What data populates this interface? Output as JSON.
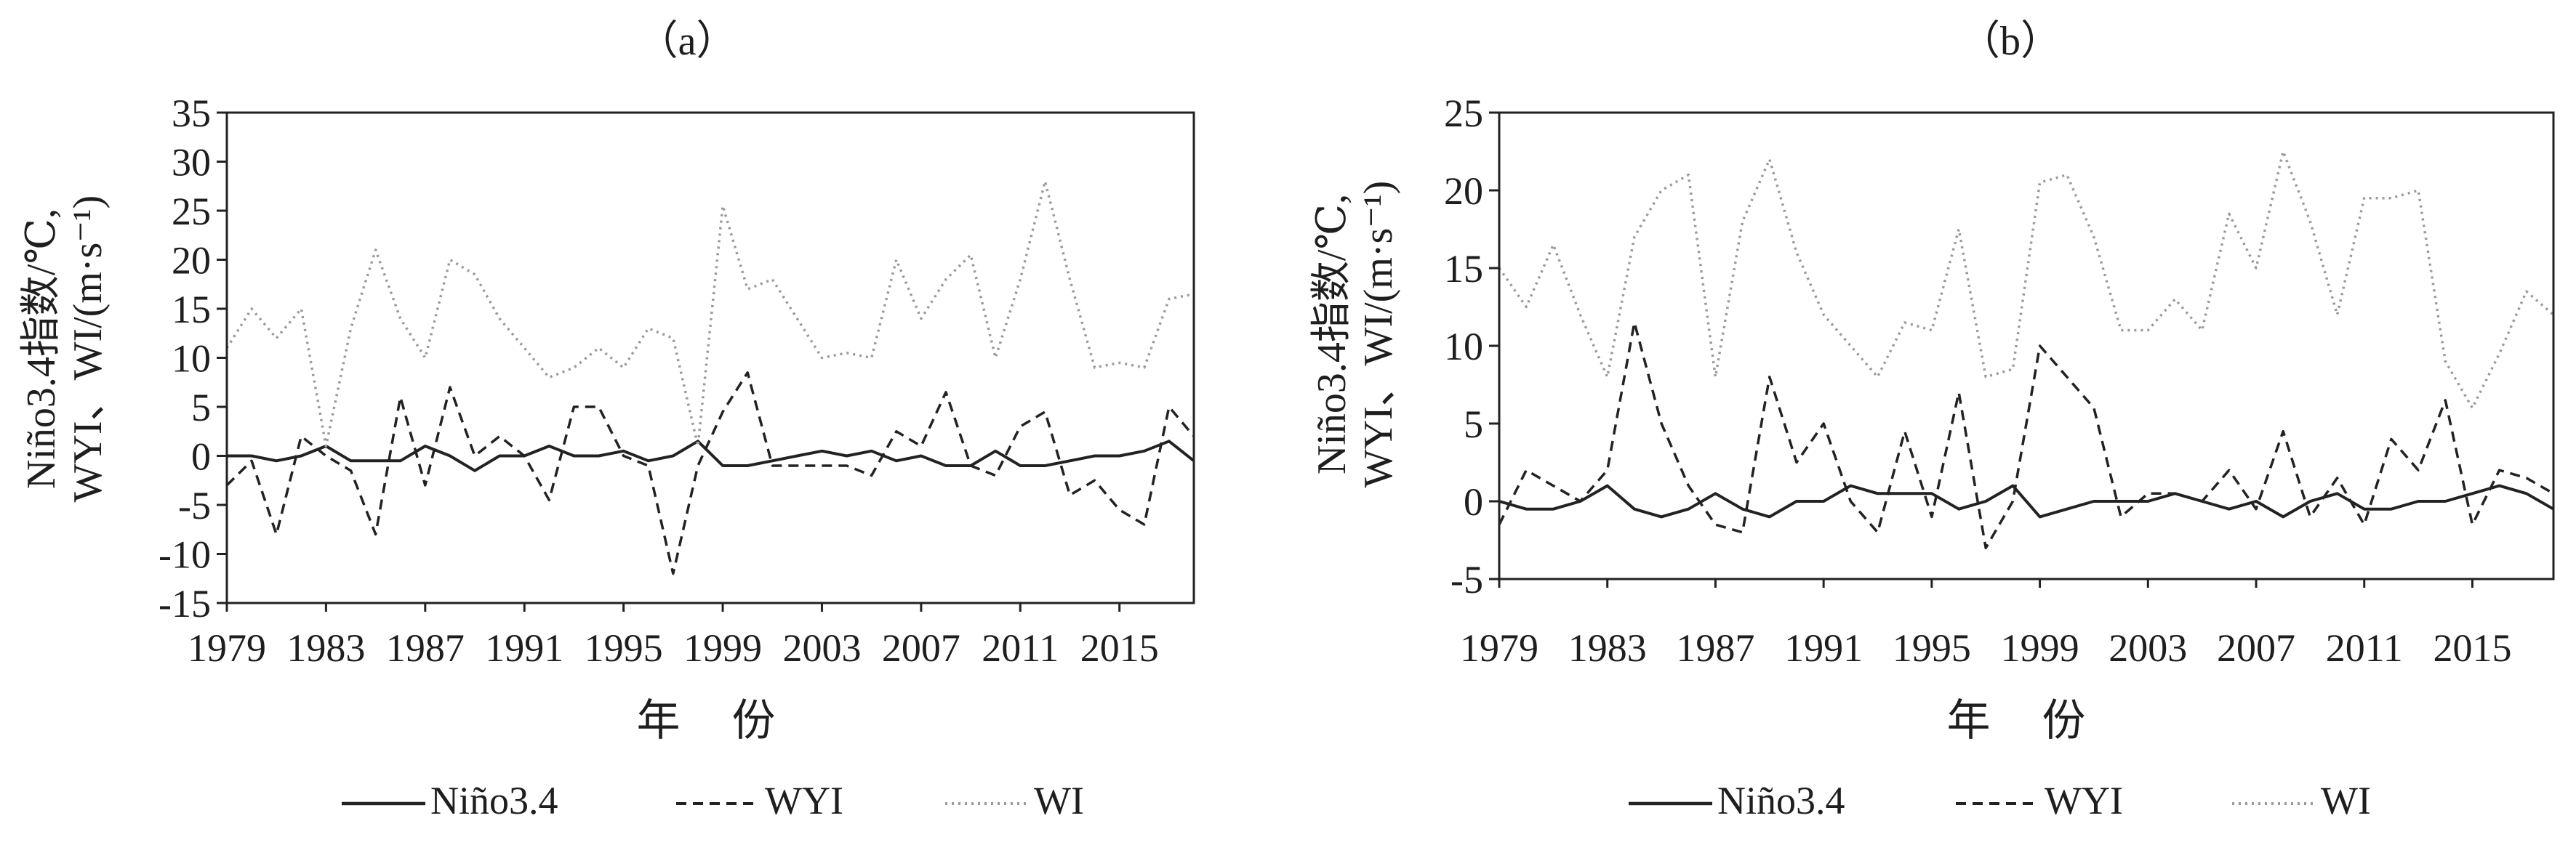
{
  "chart_data": [
    {
      "type": "line",
      "title": "（a）",
      "xlabel": "年 份",
      "ylabel_line1": "Niño3.4指数/℃,",
      "ylabel_line2": "WYI、WI/(m·s⁻¹)",
      "ylim": [
        -15,
        35
      ],
      "yticks": [
        35,
        30,
        25,
        20,
        15,
        10,
        5,
        0,
        -5,
        -10,
        -15
      ],
      "xlim": [
        1979,
        2018
      ],
      "xticks": [
        "1979",
        "1983",
        "1987",
        "1991",
        "1995",
        "1999",
        "2003",
        "2007",
        "2011",
        "2015"
      ],
      "x": [
        1979,
        1980,
        1981,
        1982,
        1983,
        1984,
        1985,
        1986,
        1987,
        1988,
        1989,
        1990,
        1991,
        1992,
        1993,
        1994,
        1995,
        1996,
        1997,
        1998,
        1999,
        2000,
        2001,
        2002,
        2003,
        2004,
        2005,
        2006,
        2007,
        2008,
        2009,
        2010,
        2011,
        2012,
        2013,
        2014,
        2015,
        2016,
        2017,
        2018
      ],
      "series": [
        {
          "name": "Niño3.4",
          "style": "solid",
          "color": "#222222",
          "values": [
            0,
            0,
            -0.5,
            0,
            1,
            -0.5,
            -0.5,
            -0.5,
            1,
            0,
            -1.5,
            0,
            0,
            1,
            0,
            0,
            0.5,
            -0.5,
            0,
            1.5,
            -1,
            -1,
            -0.5,
            0,
            0.5,
            0,
            0.5,
            -0.5,
            0,
            -1,
            -1,
            0.5,
            -1,
            -1,
            -0.5,
            0,
            0,
            0.5,
            1.5,
            -0.5
          ]
        },
        {
          "name": "WYI",
          "style": "dashed",
          "color": "#222222",
          "values": [
            -3,
            -0.5,
            -8,
            2,
            0,
            -1.5,
            -8,
            6,
            -3,
            7,
            0,
            2,
            0,
            -4.5,
            5,
            5,
            0,
            -1,
            -12,
            -1,
            4.5,
            8.5,
            -1,
            -1,
            -1,
            -1,
            -2,
            2.5,
            1,
            6.5,
            -1,
            -2,
            3,
            4.5,
            -4,
            -2.5,
            -5.5,
            -7,
            5,
            2
          ]
        },
        {
          "name": "WI",
          "style": "dotted",
          "color": "#9a9a9a",
          "values": [
            11,
            15,
            12,
            15,
            1,
            13,
            21,
            14,
            10,
            20,
            18.5,
            14,
            11,
            8,
            9,
            11,
            9,
            13,
            12,
            1,
            25.5,
            17,
            18,
            14,
            10,
            10.5,
            10,
            20,
            14,
            18,
            20.5,
            10,
            18,
            28,
            18,
            9,
            9.5,
            9,
            16,
            16.5
          ]
        }
      ],
      "legend_position": "bottom"
    },
    {
      "type": "line",
      "title": "（b）",
      "xlabel": "年 份",
      "ylabel_line1": "Niño3.4指数/℃,",
      "ylabel_line2": "WYI、WI/(m·s⁻¹)",
      "ylim": [
        -5,
        25
      ],
      "yticks": [
        25,
        20,
        15,
        10,
        5,
        0,
        -5
      ],
      "xlim": [
        1979,
        2018
      ],
      "xticks": [
        "1979",
        "1983",
        "1987",
        "1991",
        "1995",
        "1999",
        "2003",
        "2007",
        "2011",
        "2015"
      ],
      "x": [
        1979,
        1980,
        1981,
        1982,
        1983,
        1984,
        1985,
        1986,
        1987,
        1988,
        1989,
        1990,
        1991,
        1992,
        1993,
        1994,
        1995,
        1996,
        1997,
        1998,
        1999,
        2000,
        2001,
        2002,
        2003,
        2004,
        2005,
        2006,
        2007,
        2008,
        2009,
        2010,
        2011,
        2012,
        2013,
        2014,
        2015,
        2016,
        2017,
        2018
      ],
      "series": [
        {
          "name": "Niño3.4",
          "style": "solid",
          "color": "#222222",
          "values": [
            0,
            -0.5,
            -0.5,
            0,
            1,
            -0.5,
            -1,
            -0.5,
            0.5,
            -0.5,
            -1,
            0,
            0,
            1,
            0.5,
            0.5,
            0.5,
            -0.5,
            0,
            1,
            -1,
            -0.5,
            0,
            0,
            0,
            0.5,
            0,
            -0.5,
            0,
            -1,
            0,
            0.5,
            -0.5,
            -0.5,
            0,
            0,
            0.5,
            1,
            0.5,
            -0.5
          ]
        },
        {
          "name": "WYI",
          "style": "dashed",
          "color": "#222222",
          "values": [
            -1.5,
            2,
            1,
            0,
            2,
            11.5,
            5,
            1,
            -1.5,
            -2,
            8,
            2.5,
            5,
            0,
            -2,
            4.5,
            -1,
            7,
            -3,
            0,
            10,
            8,
            6,
            -1,
            0.5,
            0.5,
            0,
            2,
            -0.5,
            4.5,
            -1,
            1.5,
            -1.5,
            4,
            2,
            6.5,
            -1.5,
            2,
            1.5,
            0.5
          ]
        },
        {
          "name": "WI",
          "style": "dotted",
          "color": "#9a9a9a",
          "values": [
            15,
            12.5,
            16.5,
            12,
            8,
            17,
            20,
            21,
            8,
            18,
            22,
            16,
            12,
            10,
            8,
            11.5,
            11,
            17.5,
            8,
            8.5,
            20.5,
            21,
            17,
            11,
            11,
            13,
            11,
            18.5,
            15,
            22.5,
            18,
            12,
            19.5,
            19.5,
            20,
            9,
            6,
            9.5,
            13.5,
            12
          ]
        }
      ],
      "legend_position": "bottom"
    }
  ]
}
